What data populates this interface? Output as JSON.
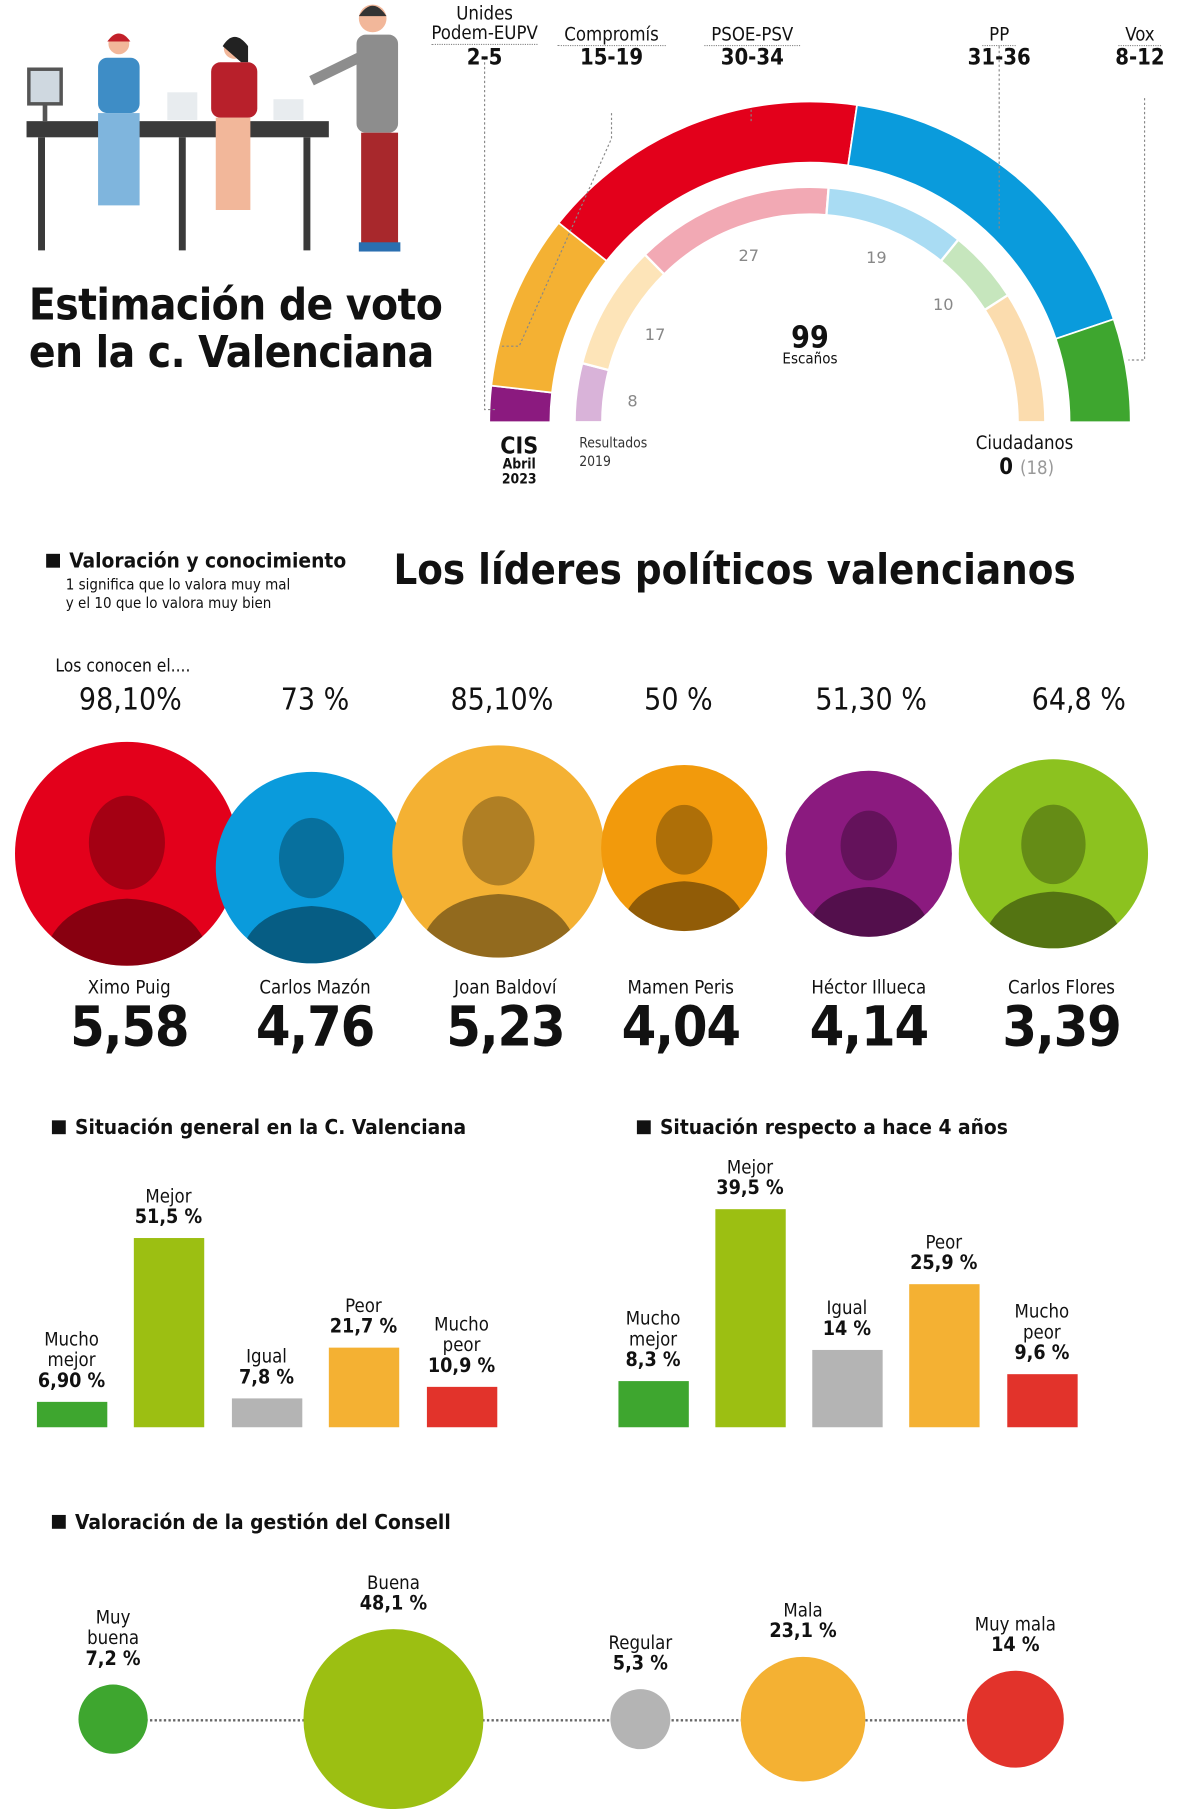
{
  "header": {
    "title_line1": "Estimación de voto",
    "title_line2": "en la c. Valenciana",
    "source": "CIS",
    "source_date1": "Abril",
    "source_date2": "2023",
    "results_label1": "Resultados",
    "results_label2": "2019",
    "total_seats": "99",
    "seats_label": "Escaños",
    "cs_label": "Ciudadanos",
    "cs_value": "0",
    "cs_prev": "(18)"
  },
  "chart_data": [
    {
      "type": "pie",
      "subtype": "parliament-semicircle",
      "title": "Estimación de voto en la c. Valenciana",
      "total": 99,
      "series": [
        {
          "name": "CIS Abril 2023",
          "categories": [
            "Unides Podem-EUPV",
            "Compromís",
            "PSOE-PSV",
            "PP",
            "Vox"
          ],
          "labels": [
            "Unides Podem-EUPV",
            "Compromís",
            "PSOE-PSV",
            "PP",
            "Vox"
          ],
          "ranges": [
            "2-5",
            "15-19",
            "30-34",
            "31-36",
            "8-12"
          ],
          "low": [
            2,
            15,
            30,
            31,
            8
          ],
          "high": [
            5,
            19,
            34,
            36,
            12
          ],
          "colors": [
            "#8b1a7f",
            "#f4b133",
            "#e3001b",
            "#0a9bdc",
            "#3ea62f"
          ]
        },
        {
          "name": "Resultados 2019",
          "categories": [
            "Unides Podem-EUPV",
            "Compromís",
            "PSOE-PSV",
            "PP",
            "Vox",
            "Ciudadanos"
          ],
          "values": [
            8,
            17,
            27,
            19,
            10,
            18
          ],
          "value_labels": [
            "8",
            "17",
            "27",
            "19",
            "10",
            ""
          ],
          "colors": [
            "#d9b3d9",
            "#fde4b8",
            "#f2a9b4",
            "#a9dcf3",
            "#c6e6bd",
            "#fbdcae"
          ]
        }
      ]
    },
    {
      "type": "bar",
      "title": "Situación general en la C. Valenciana",
      "categories": [
        "Mucho mejor",
        "Mejor",
        "Igual",
        "Peor",
        "Mucho peor"
      ],
      "cat_lines": [
        [
          "Mucho",
          "mejor"
        ],
        [
          "Mejor"
        ],
        [
          "Igual"
        ],
        [
          "Peor"
        ],
        [
          "Mucho",
          "peor"
        ]
      ],
      "values": [
        6.9,
        51.5,
        7.8,
        21.7,
        10.9
      ],
      "value_labels": [
        "6,90 %",
        "51,5 %",
        "7,8 %",
        "21,7 %",
        "10,9 %"
      ],
      "colors": [
        "#3ea62f",
        "#9cbf12",
        "#b4b4b4",
        "#f4b133",
        "#e2332b"
      ]
    },
    {
      "type": "bar",
      "title": "Situación respecto a hace 4 años",
      "categories": [
        "Mucho mejor",
        "Mejor",
        "Igual",
        "Peor",
        "Mucho peor"
      ],
      "cat_lines": [
        [
          "Mucho",
          "mejor"
        ],
        [
          "Mejor"
        ],
        [
          "Igual"
        ],
        [
          "Peor"
        ],
        [
          "Mucho",
          "peor"
        ]
      ],
      "values": [
        8.3,
        39.5,
        14,
        25.9,
        9.6
      ],
      "value_labels": [
        "8,3 %",
        "39,5 %",
        "14 %",
        "25,9 %",
        "9,6 %"
      ],
      "colors": [
        "#3ea62f",
        "#9cbf12",
        "#b4b4b4",
        "#f4b133",
        "#e2332b"
      ]
    },
    {
      "type": "scatter",
      "subtype": "bubble",
      "title": "Valoración de la gestión del Consell",
      "categories": [
        "Muy buena",
        "Buena",
        "Regular",
        "Mala",
        "Muy mala"
      ],
      "cat_lines": [
        [
          "Muy",
          "buena"
        ],
        [
          "Buena"
        ],
        [
          "Regular"
        ],
        [
          "Mala"
        ],
        [
          "Muy mala"
        ]
      ],
      "values": [
        7.2,
        48.1,
        5.3,
        23.1,
        14
      ],
      "value_labels": [
        "7,2 %",
        "48,1 %",
        "5,3 %",
        "23,1 %",
        "14 %"
      ],
      "colors": [
        "#3ea62f",
        "#9cbf12",
        "#b4b4b4",
        "#f4b133",
        "#e2332b"
      ]
    }
  ],
  "leaders": {
    "section": "Valoración y conocimiento",
    "note1": "1 significa que lo valora muy mal",
    "note2": "y el 10 que lo valora muy bien",
    "title": "Los líderes políticos valencianos",
    "known_label": "Los conocen el....",
    "items": [
      {
        "name": "Ximo Puig",
        "known": "98,10%",
        "score": "5,58",
        "color": "#e3001b"
      },
      {
        "name": "Carlos Mazón",
        "known": "73 %",
        "score": "4,76",
        "color": "#0a9bdc"
      },
      {
        "name": "Joan Baldoví",
        "known": "85,10%",
        "score": "5,23",
        "color": "#f4b133"
      },
      {
        "name": "Mamen Peris",
        "known": "50 %",
        "score": "4,04",
        "color": "#f29a0c"
      },
      {
        "name": "Héctor Illueca",
        "known": "51,30 %",
        "score": "4,14",
        "color": "#8b1a7f"
      },
      {
        "name": "Carlos Flores",
        "known": "64,8 %",
        "score": "3,39",
        "color": "#8cc21f"
      }
    ]
  }
}
